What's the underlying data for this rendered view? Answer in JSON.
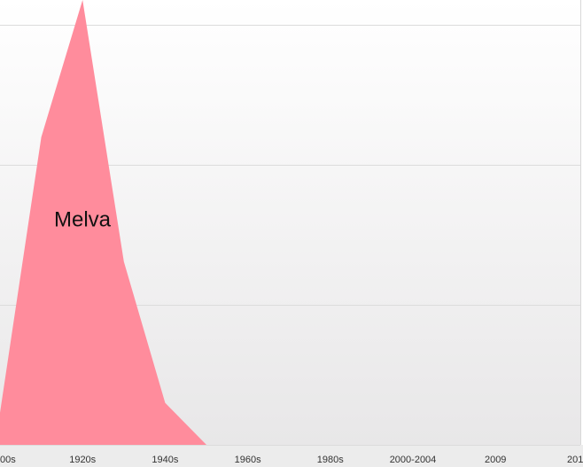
{
  "chart_data": {
    "type": "area",
    "categories": [
      "00s",
      null,
      "1920s",
      null,
      "1940s",
      null,
      "1960s",
      null,
      "1980s",
      null,
      "2000-2004",
      null,
      "2009",
      null,
      "201"
    ],
    "series": [
      {
        "name": "Melva",
        "color": "#ff8c9c",
        "values": [
          0.23,
          2.2,
          3.18,
          1.31,
          0.3,
          0,
          0,
          0,
          0,
          0,
          0,
          0,
          0,
          0,
          0
        ]
      }
    ],
    "ylim": [
      0,
      3.18
    ],
    "yticks": [
      0,
      1,
      2,
      3
    ],
    "grid": true
  }
}
